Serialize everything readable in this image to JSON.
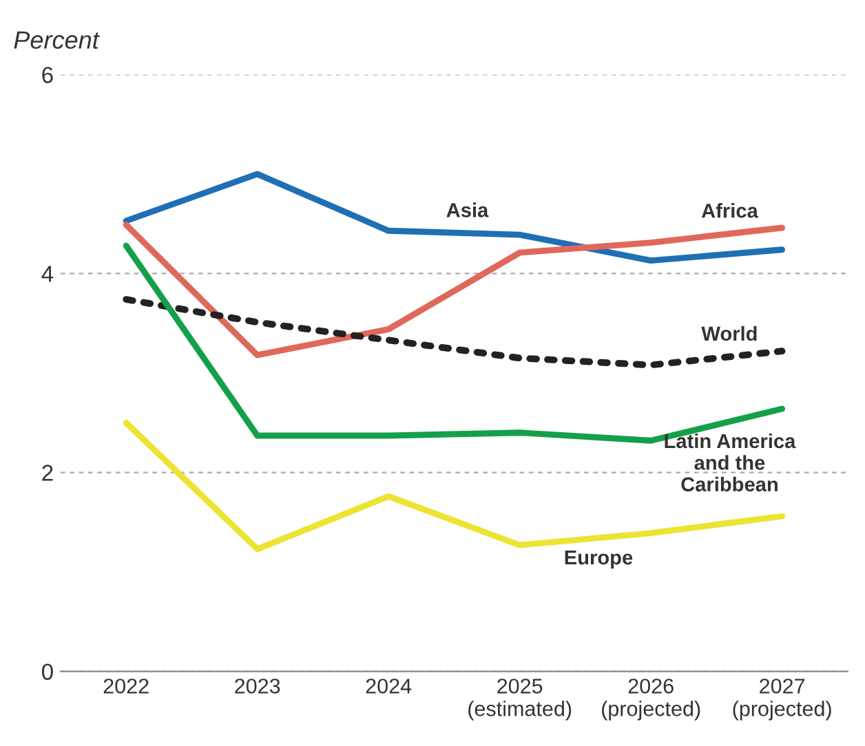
{
  "chart_data": {
    "type": "line",
    "ylabel": "Percent",
    "categories": [
      "2022",
      "2023",
      "2024",
      "2025\n(estimated)",
      "2026\n(projected)",
      "2027\n(projected)"
    ],
    "series": [
      {
        "name": "Asia",
        "color": "#1f6fb4",
        "values": [
          4.53,
          5.0,
          4.43,
          4.39,
          4.13,
          4.24
        ]
      },
      {
        "name": "Africa",
        "color": "#e0685a",
        "values": [
          4.49,
          3.18,
          3.44,
          4.21,
          4.31,
          4.46
        ]
      },
      {
        "name": "World",
        "color": "#222222",
        "line_style": "dotted",
        "values": [
          3.74,
          3.51,
          3.33,
          3.15,
          3.08,
          3.22
        ]
      },
      {
        "name": "Latin America\nand the\nCaribbean",
        "color": "#14a04a",
        "values": [
          4.28,
          2.37,
          2.37,
          2.4,
          2.32,
          2.64
        ]
      },
      {
        "name": "Europe",
        "color": "#ede332",
        "values": [
          2.5,
          1.23,
          1.76,
          1.27,
          1.39,
          1.56
        ]
      }
    ],
    "ylim": [
      0,
      6
    ],
    "yticks": [
      0,
      2,
      4,
      6
    ],
    "grid": "y",
    "legend": false,
    "marker": "none",
    "line_style": "solid"
  }
}
